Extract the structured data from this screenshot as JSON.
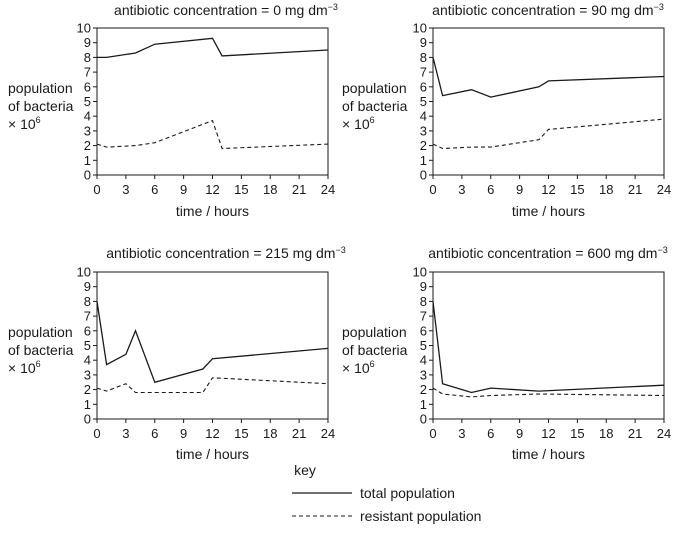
{
  "chart_data": [
    {
      "type": "line",
      "title": "antibiotic concentration = 0 mg dm",
      "title_sup": "−3",
      "xlabel": "time / hours",
      "ylabel_lines": [
        "population",
        "of bacteria",
        "× 10"
      ],
      "ylabel_sup": "6",
      "xlim": [
        0,
        24
      ],
      "ylim": [
        0,
        10
      ],
      "xticks": [
        0,
        3,
        6,
        9,
        12,
        15,
        18,
        21,
        24
      ],
      "yticks": [
        0,
        1,
        2,
        3,
        4,
        5,
        6,
        7,
        8,
        9,
        10
      ],
      "series": [
        {
          "name": "total population",
          "style": "solid",
          "x": [
            0,
            1,
            4,
            6,
            12,
            13,
            24
          ],
          "y": [
            8.0,
            8.0,
            8.3,
            8.9,
            9.3,
            8.1,
            8.5
          ]
        },
        {
          "name": "resistant population",
          "style": "dashed",
          "x": [
            0,
            1,
            4,
            6,
            12,
            13,
            24
          ],
          "y": [
            2.1,
            1.9,
            2.0,
            2.2,
            3.7,
            1.8,
            2.1
          ]
        }
      ]
    },
    {
      "type": "line",
      "title": "antibiotic concentration = 90 mg dm",
      "title_sup": "−3",
      "xlabel": "time / hours",
      "ylabel_lines": [
        "population",
        "of bacteria",
        "× 10"
      ],
      "ylabel_sup": "6",
      "xlim": [
        0,
        24
      ],
      "ylim": [
        0,
        10
      ],
      "xticks": [
        0,
        3,
        6,
        9,
        12,
        15,
        18,
        21,
        24
      ],
      "yticks": [
        0,
        1,
        2,
        3,
        4,
        5,
        6,
        7,
        8,
        9,
        10
      ],
      "series": [
        {
          "name": "total population",
          "style": "solid",
          "x": [
            0,
            1,
            4,
            6,
            11,
            12,
            24
          ],
          "y": [
            8.0,
            5.4,
            5.8,
            5.3,
            6.0,
            6.4,
            6.7
          ]
        },
        {
          "name": "resistant population",
          "style": "dashed",
          "x": [
            0,
            1,
            4,
            6,
            11,
            12,
            24
          ],
          "y": [
            2.1,
            1.8,
            1.9,
            1.9,
            2.4,
            3.1,
            3.8
          ]
        }
      ]
    },
    {
      "type": "line",
      "title": "antibiotic concentration = 215 mg dm",
      "title_sup": "−3",
      "xlabel": "time / hours",
      "ylabel_lines": [
        "population",
        "of bacteria",
        "× 10"
      ],
      "ylabel_sup": "6",
      "xlim": [
        0,
        24
      ],
      "ylim": [
        0,
        10
      ],
      "xticks": [
        0,
        3,
        6,
        9,
        12,
        15,
        18,
        21,
        24
      ],
      "yticks": [
        0,
        1,
        2,
        3,
        4,
        5,
        6,
        7,
        8,
        9,
        10
      ],
      "series": [
        {
          "name": "total population",
          "style": "solid",
          "x": [
            0,
            1,
            3,
            4,
            6,
            11,
            12,
            24
          ],
          "y": [
            8.0,
            3.7,
            4.4,
            6.0,
            2.5,
            3.4,
            4.1,
            4.8
          ]
        },
        {
          "name": "resistant population",
          "style": "dashed",
          "x": [
            0,
            1,
            3,
            4,
            6,
            11,
            12,
            24
          ],
          "y": [
            2.1,
            1.9,
            2.4,
            1.8,
            1.8,
            1.8,
            2.8,
            2.4
          ]
        }
      ]
    },
    {
      "type": "line",
      "title": "antibiotic concentration = 600 mg dm",
      "title_sup": "−3",
      "xlabel": "time / hours",
      "ylabel_lines": [
        "population",
        "of bacteria",
        "× 10"
      ],
      "ylabel_sup": "6",
      "xlim": [
        0,
        24
      ],
      "ylim": [
        0,
        10
      ],
      "xticks": [
        0,
        3,
        6,
        9,
        12,
        15,
        18,
        21,
        24
      ],
      "yticks": [
        0,
        1,
        2,
        3,
        4,
        5,
        6,
        7,
        8,
        9,
        10
      ],
      "series": [
        {
          "name": "total population",
          "style": "solid",
          "x": [
            0,
            1,
            4,
            6,
            11,
            24
          ],
          "y": [
            8.0,
            2.4,
            1.8,
            2.1,
            1.9,
            2.3
          ]
        },
        {
          "name": "resistant population",
          "style": "dashed",
          "x": [
            0,
            1,
            4,
            6,
            11,
            24
          ],
          "y": [
            2.1,
            1.7,
            1.5,
            1.6,
            1.7,
            1.6
          ]
        }
      ]
    }
  ],
  "key": {
    "title": "key",
    "total_label": "total population",
    "resistant_label": "resistant population"
  }
}
